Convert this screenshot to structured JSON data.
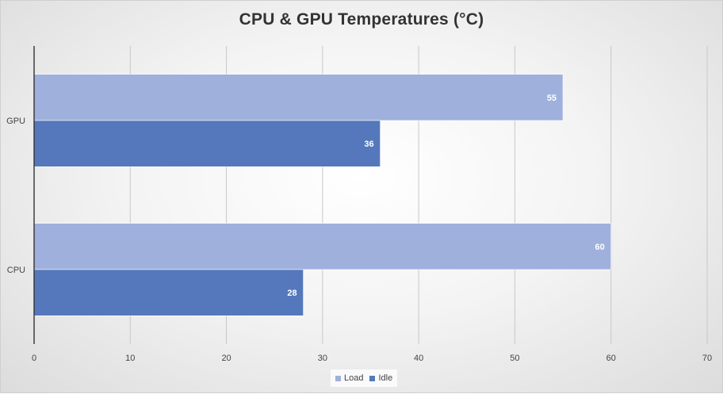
{
  "chart_data": {
    "type": "bar",
    "orientation": "horizontal",
    "title": "CPU & GPU Temperatures (°C)",
    "xlabel": "",
    "ylabel": "",
    "categories": [
      "GPU",
      "CPU"
    ],
    "series": [
      {
        "name": "Load",
        "values": [
          55,
          60
        ],
        "color": "#9fb0dc"
      },
      {
        "name": "Idle",
        "values": [
          36,
          28
        ],
        "color": "#5478bb"
      }
    ],
    "xlim": [
      0,
      70
    ],
    "xticks": [
      0,
      10,
      20,
      30,
      40,
      50,
      60,
      70
    ],
    "grid": true,
    "legend_position": "bottom",
    "data_labels": true
  }
}
